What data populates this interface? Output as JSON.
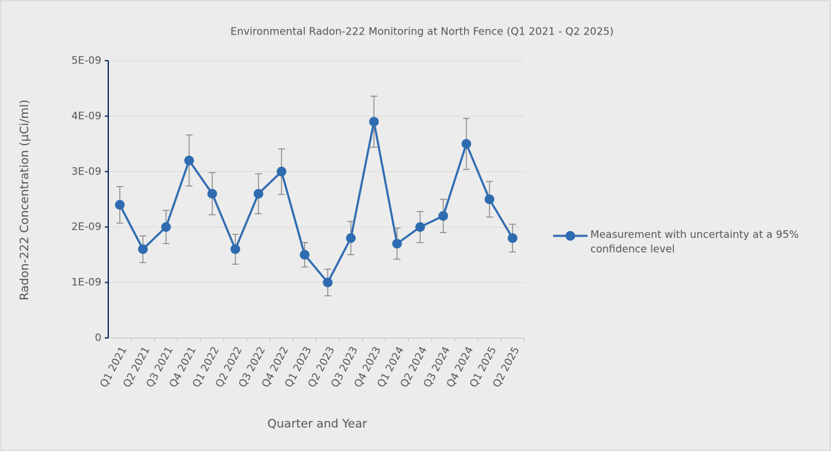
{
  "chart_data": {
    "type": "line",
    "title": "Environmental Radon-222 Monitoring at North Fence (Q1 2021 - Q2 2025)",
    "x_label": "Quarter and Year",
    "y_label": "Radon-222 Concentration (µCi/ml)",
    "categories": [
      "Q1 2021",
      "Q2 2021",
      "Q3 2021",
      "Q4 2021",
      "Q1 2022",
      "Q2 2022",
      "Q3 2022",
      "Q4 2022",
      "Q1 2023",
      "Q2 2023",
      "Q3 2023",
      "Q4 2023",
      "Q1 2024",
      "Q2 2024",
      "Q3 2024",
      "Q4 2024",
      "Q1 2025",
      "Q2 2025"
    ],
    "series": [
      {
        "name": "Measurement with uncertainty at a 95% confidence level",
        "color": "#2e6bb0",
        "values": [
          2.4e-09,
          1.6e-09,
          2e-09,
          3.2e-09,
          2.6e-09,
          1.6e-09,
          2.6e-09,
          3e-09,
          1.5e-09,
          1e-09,
          1.8e-09,
          3.9e-09,
          1.7e-09,
          2e-09,
          2.2e-09,
          3.5e-09,
          2.5e-09,
          1.8e-09
        ],
        "errors": [
          3.3e-10,
          2.4e-10,
          3e-10,
          4.6e-10,
          3.8e-10,
          2.7e-10,
          3.6e-10,
          4.1e-10,
          2.2e-10,
          2.4e-10,
          3e-10,
          4.6e-10,
          2.8e-10,
          2.8e-10,
          3e-10,
          4.6e-10,
          3.2e-10,
          2.5e-10
        ]
      }
    ],
    "ylim": [
      0,
      5e-09
    ],
    "yticks": [
      0,
      {
        "value": 1e-09,
        "label": "1E-09"
      },
      {
        "value": 2e-09,
        "label": "2E-09"
      },
      {
        "value": 3e-09,
        "label": "3E-09"
      },
      {
        "value": 4e-09,
        "label": "4E-09"
      },
      {
        "value": 5e-09,
        "label": "5E-09"
      }
    ],
    "grid": true,
    "legend": "right"
  }
}
